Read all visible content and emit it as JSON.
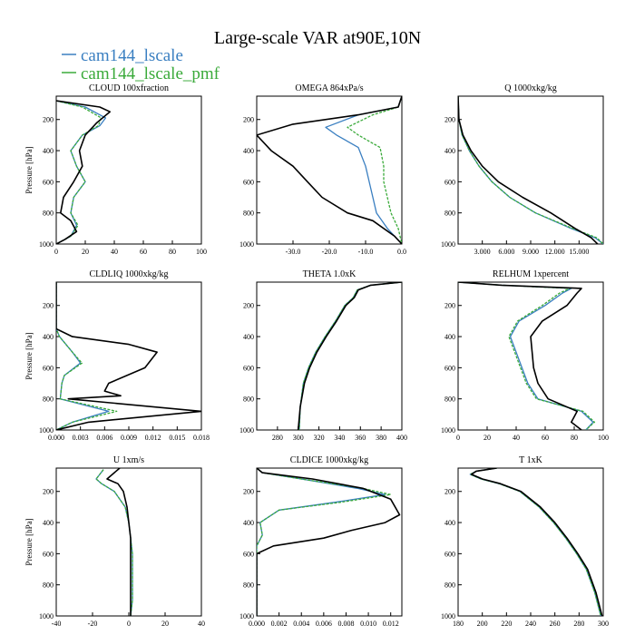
{
  "figure": {
    "title": "Large-scale VAR at90E,10N",
    "legend": [
      {
        "name": "cam144_lscale",
        "color": "#3a7fc1"
      },
      {
        "name": "cam144_lscale_pmf",
        "color": "#3aaa3a"
      }
    ],
    "observation_color": "#000000"
  },
  "chart_data": [
    {
      "type": "line",
      "title": "CLOUD 100xfraction",
      "ylabel": "Pressure [hPa]",
      "xlim": [
        0,
        100
      ],
      "ylim": [
        1000,
        50
      ],
      "xticks": [
        "0",
        "20",
        "40",
        "60",
        "80",
        "100"
      ],
      "yticks": [
        "200",
        "400",
        "600",
        "800",
        "1000"
      ],
      "series": [
        {
          "name": "",
          "color": "#000000",
          "x": [
            0,
            30,
            37,
            28,
            20,
            16,
            18,
            12,
            5,
            3,
            10,
            14,
            6,
            0
          ],
          "y": [
            80,
            120,
            150,
            220,
            300,
            400,
            500,
            600,
            700,
            800,
            850,
            920,
            970,
            1000
          ]
        },
        {
          "name": "cam144_lscale",
          "color": "#3a7fc1",
          "x": [
            0,
            20,
            34,
            30,
            18,
            10,
            14,
            20,
            12,
            10,
            14,
            10,
            0
          ],
          "y": [
            80,
            120,
            190,
            240,
            300,
            400,
            500,
            600,
            700,
            800,
            880,
            950,
            1000
          ]
        },
        {
          "name": "cam144_lscale_pmf",
          "color": "#3aaa3a",
          "x": [
            0,
            18,
            31,
            29,
            18,
            10,
            14,
            20,
            12,
            10,
            15,
            10,
            0
          ],
          "y": [
            80,
            120,
            190,
            240,
            300,
            400,
            500,
            600,
            700,
            800,
            880,
            950,
            1000
          ]
        }
      ]
    },
    {
      "type": "line",
      "title": "OMEGA  864xPa/s",
      "ylabel": "",
      "xlim": [
        -40,
        0
      ],
      "ylim": [
        1000,
        50
      ],
      "xticks": [
        "-30.0",
        "-20.0",
        "-10.0",
        "0.0"
      ],
      "yticks": [
        "200",
        "400",
        "600",
        "800",
        "1000"
      ],
      "series": [
        {
          "name": "",
          "color": "#000000",
          "x": [
            0,
            -1,
            -12,
            -30,
            -40,
            -36,
            -30,
            -26,
            -22,
            -15,
            -8,
            -2,
            0
          ],
          "y": [
            50,
            120,
            170,
            230,
            300,
            400,
            500,
            600,
            700,
            800,
            850,
            950,
            1000
          ]
        },
        {
          "name": "cam144_lscale",
          "color": "#3a7fc1",
          "x": [
            0,
            -1,
            -12,
            -21,
            -18,
            -12,
            -10,
            -9,
            -8,
            -7,
            -4,
            0
          ],
          "y": [
            50,
            120,
            170,
            250,
            300,
            380,
            500,
            600,
            700,
            800,
            900,
            1000
          ]
        },
        {
          "name": "cam144_lscale_pmf",
          "color": "#3aaa3a",
          "x": [
            0,
            -1,
            -8,
            -15,
            -12,
            -6,
            -5,
            -5,
            -4,
            -3,
            -1,
            0
          ],
          "y": [
            50,
            120,
            170,
            250,
            300,
            380,
            500,
            600,
            700,
            800,
            900,
            1000
          ]
        }
      ]
    },
    {
      "type": "line",
      "title": "Q  1000xkg/kg",
      "ylabel": "",
      "xlim": [
        0,
        18
      ],
      "ylim": [
        1000,
        50
      ],
      "xticks": [
        "3.000",
        "6.000",
        "9.000",
        "12.000",
        "15.000"
      ],
      "yticks": [
        "200",
        "400",
        "600",
        "800",
        "1000"
      ],
      "series": [
        {
          "name": "",
          "color": "#000000",
          "x": [
            0,
            0.1,
            0.6,
            1.6,
            3.0,
            5.0,
            8.0,
            11.5,
            14.5,
            16.5,
            17.3
          ],
          "y": [
            50,
            200,
            300,
            400,
            500,
            600,
            700,
            800,
            900,
            960,
            1000
          ]
        },
        {
          "name": "cam144_lscale",
          "color": "#3a7fc1",
          "x": [
            0,
            0.1,
            0.5,
            1.4,
            2.6,
            4.2,
            6.4,
            9.6,
            14.0,
            17.0,
            18.0
          ],
          "y": [
            50,
            200,
            300,
            400,
            500,
            600,
            700,
            800,
            900,
            960,
            1000
          ]
        },
        {
          "name": "cam144_lscale_pmf",
          "color": "#3aaa3a",
          "x": [
            0,
            0.1,
            0.5,
            1.4,
            2.6,
            4.2,
            6.4,
            9.6,
            14.2,
            17.2,
            18.0
          ],
          "y": [
            50,
            200,
            300,
            400,
            500,
            600,
            700,
            800,
            900,
            960,
            1000
          ]
        }
      ]
    },
    {
      "type": "line",
      "title": "CLDLIQ  1000xkg/kg",
      "ylabel": "Pressure [hPa]",
      "xlim": [
        0,
        0.018
      ],
      "ylim": [
        1000,
        50
      ],
      "xticks": [
        "0.000",
        "0.003",
        "0.006",
        "0.009",
        "0.012",
        "0.015",
        "0.018"
      ],
      "yticks": [
        "200",
        "400",
        "600",
        "800",
        "1000"
      ],
      "series": [
        {
          "name": "",
          "color": "#000000",
          "x": [
            0,
            0,
            0.002,
            0.009,
            0.0125,
            0.011,
            0.0065,
            0.006,
            0.008,
            0.0015,
            0.018,
            0.004,
            0
          ],
          "y": [
            50,
            350,
            400,
            450,
            500,
            600,
            700,
            750,
            780,
            800,
            880,
            950,
            1000
          ]
        },
        {
          "name": "cam144_lscale",
          "color": "#3a7fc1",
          "x": [
            0,
            0,
            0.0004,
            0.002,
            0.003,
            0.001,
            0.0007,
            0.0005,
            0.0065,
            0.002,
            0
          ],
          "y": [
            50,
            350,
            400,
            500,
            570,
            650,
            700,
            800,
            880,
            950,
            1000
          ]
        },
        {
          "name": "cam144_lscale_pmf",
          "color": "#3aaa3a",
          "x": [
            0,
            0,
            0.0004,
            0.002,
            0.0032,
            0.001,
            0.0007,
            0.0005,
            0.0075,
            0.002,
            0
          ],
          "y": [
            50,
            350,
            400,
            500,
            570,
            650,
            700,
            800,
            880,
            950,
            1000
          ]
        }
      ]
    },
    {
      "type": "line",
      "title": "THETA  1.0xK",
      "ylabel": "",
      "xlim": [
        260,
        400
      ],
      "ylim": [
        1000,
        50
      ],
      "xticks": [
        "280",
        "300",
        "320",
        "340",
        "360",
        "380",
        "400"
      ],
      "yticks": [
        "200",
        "400",
        "600",
        "800",
        "1000"
      ],
      "series": [
        {
          "name": "",
          "color": "#000000",
          "x": [
            400,
            370,
            358,
            354,
            346,
            337,
            327,
            318,
            311,
            306,
            302,
            300
          ],
          "y": [
            50,
            70,
            100,
            150,
            200,
            300,
            400,
            500,
            600,
            700,
            850,
            1000
          ]
        },
        {
          "name": "cam144_lscale",
          "color": "#3a7fc1",
          "x": [
            400,
            370,
            357,
            353,
            345,
            336,
            326,
            317,
            310,
            305,
            302,
            301
          ],
          "y": [
            50,
            70,
            100,
            150,
            200,
            300,
            400,
            500,
            600,
            700,
            850,
            1000
          ]
        },
        {
          "name": "cam144_lscale_pmf",
          "color": "#3aaa3a",
          "x": [
            400,
            370,
            357,
            353,
            345,
            336,
            326,
            317,
            310,
            305,
            302,
            301
          ],
          "y": [
            50,
            70,
            100,
            150,
            200,
            300,
            400,
            500,
            600,
            700,
            850,
            1000
          ]
        }
      ]
    },
    {
      "type": "line",
      "title": "RELHUM  1xpercent",
      "ylabel": "",
      "xlim": [
        0,
        100
      ],
      "ylim": [
        1000,
        50
      ],
      "xticks": [
        "0",
        "20",
        "40",
        "60",
        "80",
        "100"
      ],
      "yticks": [
        "200",
        "400",
        "600",
        "800",
        "1000"
      ],
      "series": [
        {
          "name": "",
          "color": "#000000",
          "x": [
            0,
            30,
            85,
            82,
            75,
            58,
            50,
            51,
            52,
            55,
            62,
            82,
            78,
            85
          ],
          "y": [
            50,
            70,
            90,
            120,
            200,
            300,
            400,
            500,
            600,
            700,
            800,
            880,
            950,
            1000
          ]
        },
        {
          "name": "cam144_lscale",
          "color": "#3a7fc1",
          "x": [
            0,
            30,
            78,
            72,
            60,
            42,
            36,
            40,
            44,
            48,
            55,
            85,
            93,
            88
          ],
          "y": [
            50,
            70,
            90,
            120,
            200,
            300,
            400,
            500,
            600,
            700,
            800,
            880,
            950,
            1000
          ]
        },
        {
          "name": "cam144_lscale_pmf",
          "color": "#3aaa3a",
          "x": [
            0,
            30,
            77,
            70,
            58,
            41,
            35,
            39,
            43,
            47,
            54,
            86,
            94,
            88
          ],
          "y": [
            50,
            70,
            90,
            120,
            200,
            300,
            400,
            500,
            600,
            700,
            800,
            880,
            950,
            1000
          ]
        }
      ]
    },
    {
      "type": "line",
      "title": "U  1xm/s",
      "ylabel": "Pressure [hPa]",
      "xlim": [
        -40,
        40
      ],
      "ylim": [
        1000,
        50
      ],
      "xticks": [
        "-40",
        "-20",
        "0",
        "20",
        "40"
      ],
      "yticks": [
        "200",
        "400",
        "600",
        "800",
        "1000"
      ],
      "series": [
        {
          "name": "",
          "color": "#000000",
          "x": [
            -5,
            -8,
            -12,
            -6,
            -3,
            -1,
            0,
            1,
            1,
            1,
            1,
            1,
            1
          ],
          "y": [
            50,
            80,
            120,
            150,
            200,
            300,
            400,
            500,
            600,
            700,
            800,
            900,
            1000
          ]
        },
        {
          "name": "cam144_lscale",
          "color": "#3a7fc1",
          "x": [
            -14,
            -16,
            -18,
            -15,
            -8,
            -2,
            0,
            1,
            2,
            2,
            2,
            2,
            1
          ],
          "y": [
            60,
            90,
            120,
            150,
            200,
            300,
            400,
            500,
            600,
            700,
            800,
            900,
            1000
          ]
        },
        {
          "name": "cam144_lscale_pmf",
          "color": "#3aaa3a",
          "x": [
            -14,
            -16,
            -18,
            -15,
            -8,
            -2,
            0,
            1,
            2,
            2,
            2,
            2,
            1
          ],
          "y": [
            60,
            90,
            120,
            150,
            200,
            300,
            400,
            500,
            600,
            700,
            800,
            900,
            1000
          ]
        }
      ]
    },
    {
      "type": "line",
      "title": "CLDICE  1000xkg/kg",
      "ylabel": "",
      "xlim": [
        0,
        0.013
      ],
      "ylim": [
        1000,
        50
      ],
      "xticks": [
        "0.000",
        "0.002",
        "0.004",
        "0.006",
        "0.008",
        "0.010",
        "0.012"
      ],
      "yticks": [
        "200",
        "400",
        "600",
        "800",
        "1000"
      ],
      "series": [
        {
          "name": "",
          "color": "#000000",
          "x": [
            0,
            0.0005,
            0.005,
            0.0095,
            0.012,
            0.0128,
            0.0115,
            0.0085,
            0.006,
            0.0015,
            0,
            0
          ],
          "y": [
            50,
            80,
            120,
            180,
            250,
            350,
            400,
            450,
            500,
            550,
            600,
            1000
          ]
        },
        {
          "name": "cam144_lscale",
          "color": "#3a7fc1",
          "x": [
            0,
            0.0005,
            0.004,
            0.009,
            0.0115,
            0.007,
            0.002,
            0.0003,
            0.0005,
            0,
            0
          ],
          "y": [
            50,
            80,
            120,
            180,
            220,
            270,
            320,
            400,
            480,
            550,
            1000
          ]
        },
        {
          "name": "cam144_lscale_pmf",
          "color": "#3aaa3a",
          "x": [
            0,
            0.0005,
            0.004,
            0.0095,
            0.012,
            0.0075,
            0.002,
            0.0003,
            0.0005,
            0,
            0
          ],
          "y": [
            50,
            80,
            120,
            180,
            220,
            270,
            320,
            400,
            480,
            550,
            1000
          ]
        }
      ]
    },
    {
      "type": "line",
      "title": "T  1xK",
      "ylabel": "",
      "xlim": [
        180,
        300
      ],
      "ylim": [
        1000,
        50
      ],
      "xticks": [
        "180",
        "200",
        "220",
        "240",
        "260",
        "280",
        "300"
      ],
      "yticks": [
        "200",
        "400",
        "600",
        "800",
        "1000"
      ],
      "series": [
        {
          "name": "",
          "color": "#000000",
          "x": [
            212,
            195,
            191,
            200,
            215,
            232,
            248,
            260,
            270,
            279,
            287,
            294,
            299
          ],
          "y": [
            50,
            70,
            90,
            120,
            150,
            200,
            300,
            400,
            500,
            600,
            700,
            850,
            1000
          ]
        },
        {
          "name": "cam144_lscale",
          "color": "#3a7fc1",
          "x": [
            212,
            195,
            190,
            199,
            214,
            231,
            247,
            259,
            269,
            278,
            286,
            293,
            298
          ],
          "y": [
            50,
            70,
            90,
            120,
            150,
            200,
            300,
            400,
            500,
            600,
            700,
            850,
            1000
          ]
        },
        {
          "name": "cam144_lscale_pmf",
          "color": "#3aaa3a",
          "x": [
            212,
            195,
            190,
            199,
            214,
            231,
            247,
            259,
            269,
            278,
            286,
            293,
            298
          ],
          "y": [
            50,
            70,
            90,
            120,
            150,
            200,
            300,
            400,
            500,
            600,
            700,
            850,
            1000
          ]
        }
      ]
    }
  ]
}
